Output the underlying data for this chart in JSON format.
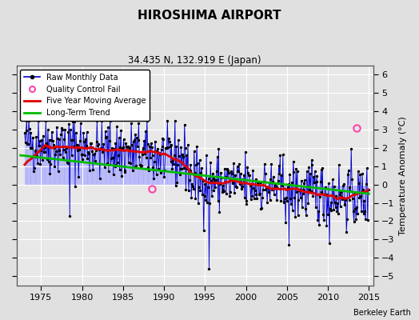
{
  "title": "HIROSHIMA AIRPORT",
  "subtitle": "34.435 N, 132.919 E (Japan)",
  "ylabel": "Temperature Anomaly (°C)",
  "attribution": "Berkeley Earth",
  "xlim": [
    1972.0,
    2015.5
  ],
  "ylim": [
    -5.5,
    6.5
  ],
  "yticks": [
    -5,
    -4,
    -3,
    -2,
    -1,
    0,
    1,
    2,
    3,
    4,
    5,
    6
  ],
  "xticks": [
    1975,
    1980,
    1985,
    1990,
    1995,
    2000,
    2005,
    2010,
    2015
  ],
  "fig_color": "#e0e0e0",
  "bg_color": "#e8e8e8",
  "grid_color": "white",
  "bar_color": "#aaaaff",
  "line_color": "#0000cc",
  "dot_color": "#000000",
  "moving_avg_color": "#dd0000",
  "trend_color": "#00bb00",
  "qc_color": "#ff44aa",
  "seed": 42,
  "long_term_trend": {
    "x": [
      1972.5,
      2015.0
    ],
    "y": [
      1.6,
      -0.5
    ]
  },
  "qc_points": [
    [
      1988.5,
      -0.25
    ],
    [
      2013.5,
      3.1
    ]
  ],
  "years_start": 1973,
  "years_end": 2014,
  "window": 60
}
